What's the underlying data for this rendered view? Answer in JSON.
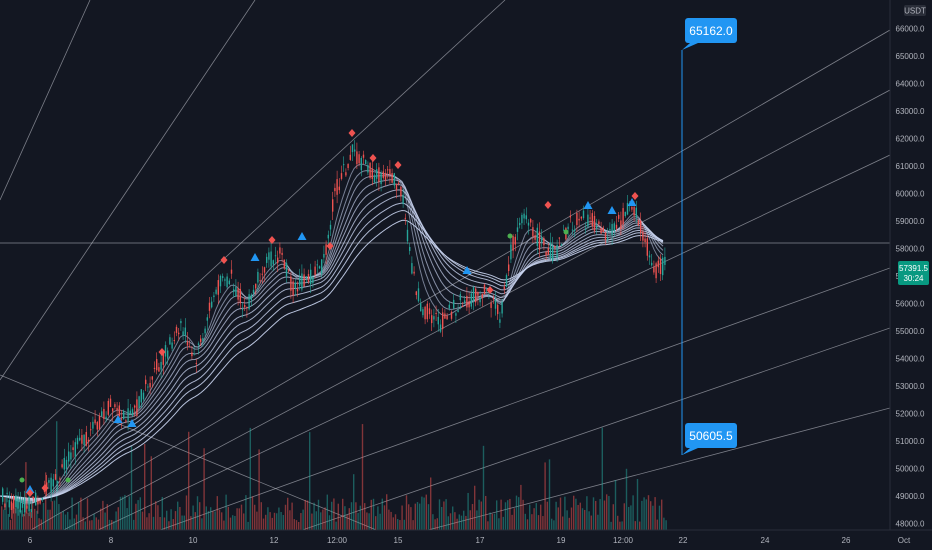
{
  "currency_label": "USDT",
  "price_axis": {
    "ticks": [
      "66000.0",
      "65000.0",
      "64000.0",
      "63000.0",
      "62000.0",
      "61000.0",
      "60000.0",
      "59000.0",
      "58000.0",
      "57000.0",
      "56000.0",
      "55000.0",
      "54000.0",
      "53000.0",
      "52000.0",
      "51000.0",
      "50000.0",
      "49000.0",
      "48000.0"
    ],
    "current_price": "57391.5",
    "countdown": "30:24"
  },
  "time_axis": {
    "labels": [
      "6",
      "8",
      "10",
      "12",
      "12:00",
      "15",
      "17",
      "19",
      "12:00",
      "22",
      "24",
      "26",
      "Oct"
    ]
  },
  "callouts": {
    "upper": "65162.0",
    "lower": "50605.5"
  },
  "colors": {
    "background": "#131722",
    "up": "#26a69a",
    "down": "#ef5350",
    "accent": "#2196f3",
    "current_price_bg": "#089981",
    "ribbon": "#c9d4f0"
  },
  "icons": [
    "up-triangle-icon",
    "down-diamond-icon",
    "dot-marker-icon"
  ]
}
